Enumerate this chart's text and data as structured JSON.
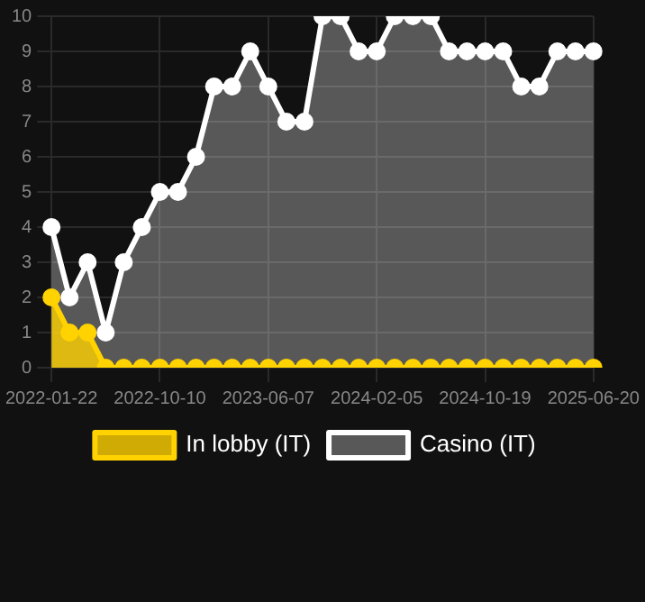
{
  "chart_data": {
    "type": "area",
    "categories": [
      "2022-01-22",
      null,
      null,
      null,
      null,
      null,
      "2022-10-10",
      null,
      null,
      null,
      null,
      null,
      "2023-06-07",
      null,
      null,
      null,
      null,
      null,
      "2024-02-05",
      null,
      null,
      null,
      null,
      null,
      "2024-10-19",
      null,
      null,
      null,
      null,
      null,
      "2025-06-20"
    ],
    "series": [
      {
        "name": "In lobby (IT)",
        "color": "#ffd200",
        "values": [
          2,
          1,
          1,
          0,
          0,
          0,
          0,
          0,
          0,
          0,
          0,
          0,
          0,
          0,
          0,
          0,
          0,
          0,
          0,
          0,
          0,
          0,
          0,
          0,
          0,
          0,
          0,
          0,
          0,
          0,
          0
        ]
      },
      {
        "name": "Casino (IT)",
        "color": "#ffffff",
        "values": [
          4,
          2,
          3,
          1,
          3,
          4,
          5,
          5,
          6,
          8,
          8,
          9,
          8,
          7,
          7,
          10,
          10,
          9,
          9,
          10,
          10,
          10,
          9,
          9,
          9,
          9,
          8,
          8,
          9,
          9,
          9
        ]
      }
    ],
    "ylim": [
      0,
      10
    ],
    "yticks": [
      0,
      1,
      2,
      3,
      4,
      5,
      6,
      7,
      8,
      9,
      10
    ],
    "grid": true,
    "legend": "bottom",
    "marker": "circle"
  }
}
